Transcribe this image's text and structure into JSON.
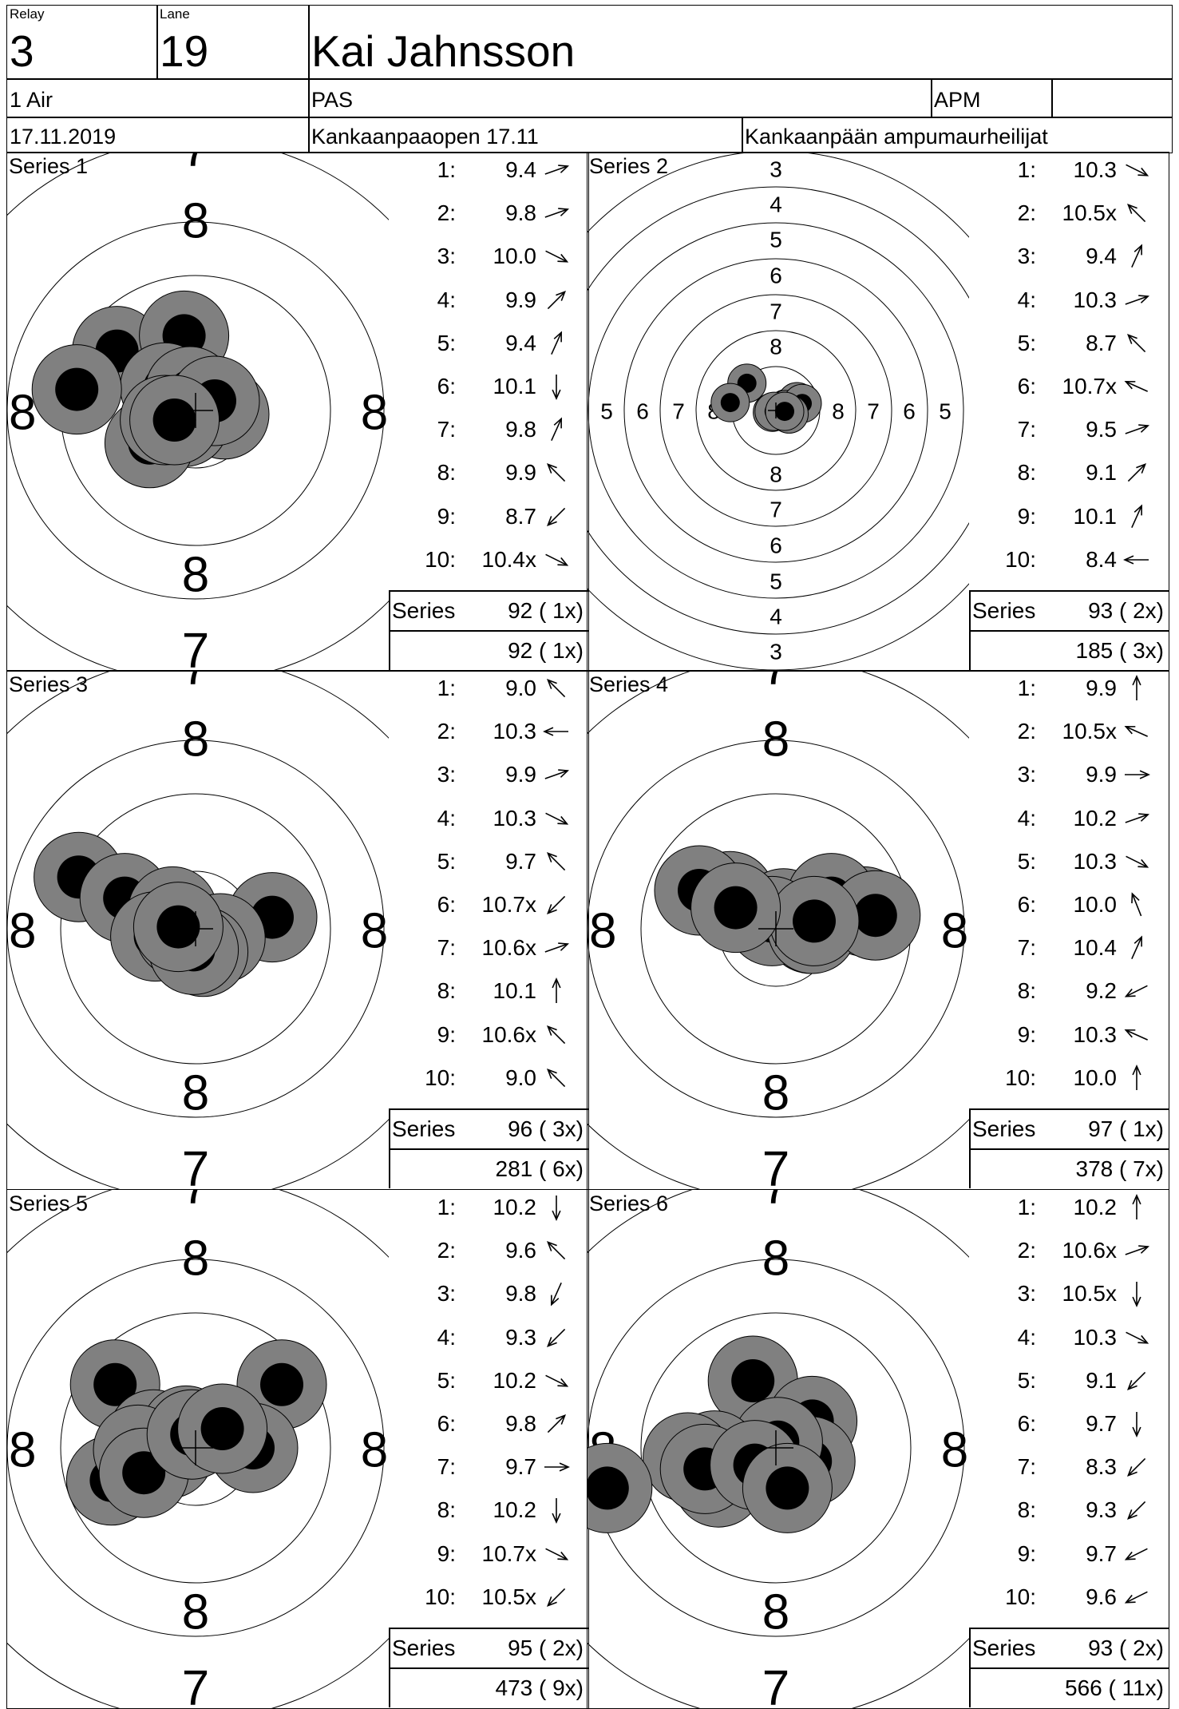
{
  "header": {
    "relay_label": "Relay",
    "relay": "3",
    "lane_label": "Lane",
    "lane": "19",
    "name": "Kai Jahnsson",
    "event": "1 Air",
    "category": "PAS",
    "club_code": "APM",
    "club_code_extra": "",
    "date": "17.11.2019",
    "competition": "Kankaanpaaopen 17.11",
    "club": "Kankaanpään ampumaurheilijat"
  },
  "series_label": "Series",
  "series": [
    {
      "title": "Series 1",
      "scale": "zoom",
      "shots": [
        {
          "n": "1:",
          "v": "9.4",
          "dir": "e-ne"
        },
        {
          "n": "2:",
          "v": "9.8",
          "dir": "e-ne"
        },
        {
          "n": "3:",
          "v": "10.0",
          "dir": "se"
        },
        {
          "n": "4:",
          "v": "9.9",
          "dir": "ne"
        },
        {
          "n": "5:",
          "v": "9.4",
          "dir": "ne-steep"
        },
        {
          "n": "6:",
          "v": "10.1",
          "dir": "s"
        },
        {
          "n": "7:",
          "v": "9.8",
          "dir": "ne-steep"
        },
        {
          "n": "8:",
          "v": "9.9",
          "dir": "nw"
        },
        {
          "n": "9:",
          "v": "8.7",
          "dir": "sw"
        },
        {
          "n": "10:",
          "v": "10.4x",
          "dir": "se"
        }
      ],
      "series_total": "92 ( 1x)",
      "running_total": "92 ( 1x)",
      "hits": [
        [
          -41,
          -31
        ],
        [
          -6,
          -39
        ],
        [
          -16,
          -12
        ],
        [
          -3,
          -10
        ],
        [
          15,
          2
        ],
        [
          -6,
          6
        ],
        [
          10,
          -5
        ],
        [
          -24,
          17
        ],
        [
          -62,
          -11
        ],
        [
          -16,
          5
        ],
        [
          -11,
          5
        ]
      ]
    },
    {
      "title": "Series 2",
      "scale": "wide",
      "shots": [
        {
          "n": "1:",
          "v": "10.3",
          "dir": "se"
        },
        {
          "n": "2:",
          "v": "10.5x",
          "dir": "nw"
        },
        {
          "n": "3:",
          "v": "9.4",
          "dir": "ne-steep"
        },
        {
          "n": "4:",
          "v": "10.3",
          "dir": "e-ne"
        },
        {
          "n": "5:",
          "v": "8.7",
          "dir": "nw"
        },
        {
          "n": "6:",
          "v": "10.7x",
          "dir": "nw-flat"
        },
        {
          "n": "7:",
          "v": "9.5",
          "dir": "e-ne"
        },
        {
          "n": "8:",
          "v": "9.1",
          "dir": "ne"
        },
        {
          "n": "9:",
          "v": "10.1",
          "dir": "ne-steep"
        },
        {
          "n": "10:",
          "v": "8.4",
          "dir": "w"
        }
      ],
      "series_total": "93 ( 2x)",
      "running_total": "185 ( 3x)",
      "hits": [
        [
          -4,
          2
        ],
        [
          12,
          -2
        ],
        [
          24,
          -10
        ],
        [
          11,
          -1
        ],
        [
          30,
          -8
        ],
        [
          -33,
          -31
        ],
        [
          -52,
          -9
        ],
        [
          -2,
          1
        ],
        [
          15,
          4
        ],
        [
          10,
          1
        ]
      ]
    },
    {
      "title": "Series 3",
      "scale": "zoom",
      "shots": [
        {
          "n": "1:",
          "v": "9.0",
          "dir": "nw"
        },
        {
          "n": "2:",
          "v": "10.3",
          "dir": "w"
        },
        {
          "n": "3:",
          "v": "9.9",
          "dir": "e-ne"
        },
        {
          "n": "4:",
          "v": "10.3",
          "dir": "se"
        },
        {
          "n": "5:",
          "v": "9.7",
          "dir": "nw"
        },
        {
          "n": "6:",
          "v": "10.7x",
          "dir": "sw"
        },
        {
          "n": "7:",
          "v": "10.6x",
          "dir": "e-ne"
        },
        {
          "n": "8:",
          "v": "10.1",
          "dir": "n"
        },
        {
          "n": "9:",
          "v": "10.6x",
          "dir": "nw"
        },
        {
          "n": "10:",
          "v": "9.0",
          "dir": "nw"
        }
      ],
      "series_total": "96 ( 3x)",
      "running_total": "281 ( 6x)",
      "hits": [
        [
          -61,
          -27
        ],
        [
          -37,
          -16
        ],
        [
          -12,
          -9
        ],
        [
          40,
          -6
        ],
        [
          -21,
          4
        ],
        [
          -8,
          2
        ],
        [
          13,
          5
        ],
        [
          4,
          12
        ],
        [
          -1,
          11
        ],
        [
          -9,
          -1
        ]
      ]
    },
    {
      "title": "Series 4",
      "scale": "zoom",
      "shots": [
        {
          "n": "1:",
          "v": "9.9",
          "dir": "n"
        },
        {
          "n": "2:",
          "v": "10.5x",
          "dir": "nw-flat"
        },
        {
          "n": "3:",
          "v": "9.9",
          "dir": "e"
        },
        {
          "n": "4:",
          "v": "10.2",
          "dir": "e-ne"
        },
        {
          "n": "5:",
          "v": "10.3",
          "dir": "se"
        },
        {
          "n": "6:",
          "v": "10.0",
          "dir": "nw-steep"
        },
        {
          "n": "7:",
          "v": "10.4",
          "dir": "ne-steep"
        },
        {
          "n": "8:",
          "v": "9.2",
          "dir": "sw-flat"
        },
        {
          "n": "9:",
          "v": "10.3",
          "dir": "nw-flat"
        },
        {
          "n": "10:",
          "v": "10.0",
          "dir": "n"
        }
      ],
      "series_total": "97 ( 1x)",
      "running_total": "378 ( 7x)",
      "hits": [
        [
          -24,
          -17
        ],
        [
          4,
          -8
        ],
        [
          46,
          -9
        ],
        [
          29,
          -16
        ],
        [
          18,
          0
        ],
        [
          -2,
          -4
        ],
        [
          19,
          0
        ],
        [
          -40,
          -20
        ],
        [
          52,
          -7
        ],
        [
          20,
          -4
        ],
        [
          -21,
          -11
        ]
      ]
    },
    {
      "title": "Series 5",
      "scale": "zoom",
      "shots": [
        {
          "n": "1:",
          "v": "10.2",
          "dir": "s"
        },
        {
          "n": "2:",
          "v": "9.6",
          "dir": "nw"
        },
        {
          "n": "3:",
          "v": "9.8",
          "dir": "sw-steep"
        },
        {
          "n": "4:",
          "v": "9.3",
          "dir": "sw"
        },
        {
          "n": "5:",
          "v": "10.2",
          "dir": "se"
        },
        {
          "n": "6:",
          "v": "9.8",
          "dir": "ne"
        },
        {
          "n": "7:",
          "v": "9.7",
          "dir": "e"
        },
        {
          "n": "8:",
          "v": "10.2",
          "dir": "s"
        },
        {
          "n": "9:",
          "v": "10.7x",
          "dir": "se"
        },
        {
          "n": "10:",
          "v": "10.5x",
          "dir": "sw"
        }
      ],
      "series_total": "95 ( 2x)",
      "running_total": "473 ( 9x)",
      "hits": [
        [
          -42,
          -33
        ],
        [
          45,
          -33
        ],
        [
          -22,
          -7
        ],
        [
          -5,
          -9
        ],
        [
          30,
          0
        ],
        [
          -14,
          3
        ],
        [
          -44,
          17
        ],
        [
          -30,
          1
        ],
        [
          -27,
          13
        ],
        [
          -2,
          -7
        ],
        [
          14,
          -10
        ]
      ]
    },
    {
      "title": "Series 6",
      "scale": "zoom",
      "shots": [
        {
          "n": "1:",
          "v": "10.2",
          "dir": "n"
        },
        {
          "n": "2:",
          "v": "10.6x",
          "dir": "e-ne"
        },
        {
          "n": "3:",
          "v": "10.5x",
          "dir": "s"
        },
        {
          "n": "4:",
          "v": "10.3",
          "dir": "se"
        },
        {
          "n": "5:",
          "v": "9.1",
          "dir": "sw"
        },
        {
          "n": "6:",
          "v": "9.7",
          "dir": "s"
        },
        {
          "n": "7:",
          "v": "8.3",
          "dir": "sw"
        },
        {
          "n": "8:",
          "v": "9.3",
          "dir": "sw"
        },
        {
          "n": "9:",
          "v": "9.7",
          "dir": "sw-flat"
        },
        {
          "n": "10:",
          "v": "9.6",
          "dir": "sw-flat"
        }
      ],
      "series_total": "93 ( 2x)",
      "running_total": "566 ( 11x)",
      "hits": [
        [
          -12,
          -35
        ],
        [
          19,
          -14
        ],
        [
          18,
          7
        ],
        [
          1,
          -3
        ],
        [
          -32,
          4
        ],
        [
          -46,
          5
        ],
        [
          -30,
          18
        ],
        [
          -37,
          11
        ],
        [
          -11,
          9
        ],
        [
          6,
          21
        ],
        [
          -88,
          21
        ]
      ]
    }
  ]
}
